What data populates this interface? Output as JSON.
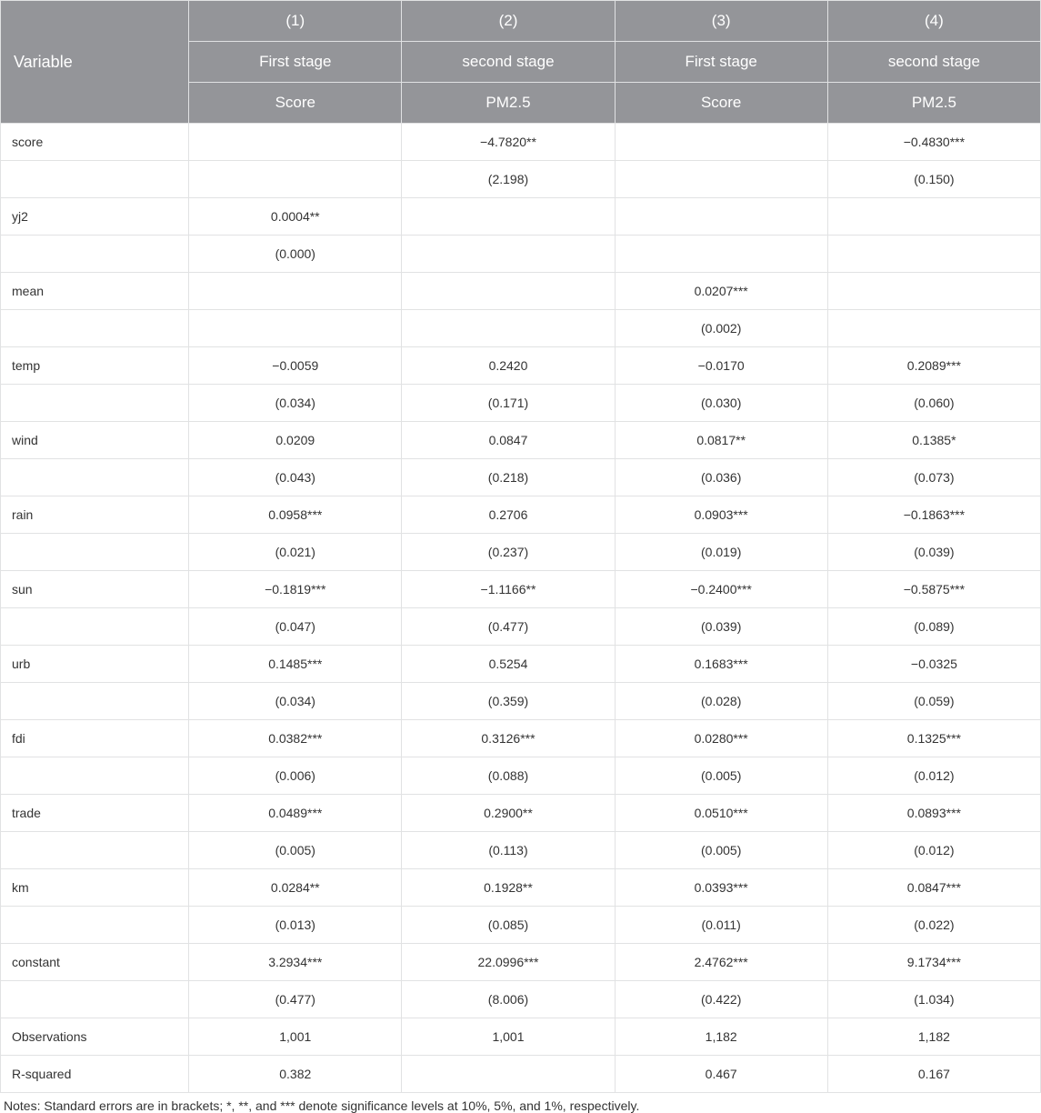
{
  "header": {
    "variable_label": "Variable",
    "col_numbers": [
      "(1)",
      "(2)",
      "(3)",
      "(4)"
    ],
    "stage_labels": [
      "First stage",
      "second stage",
      "First stage",
      "second stage"
    ],
    "dep_vars": [
      "Score",
      "PM2.5",
      "Score",
      "PM2.5"
    ]
  },
  "rows": [
    {
      "label": "score",
      "cells": [
        "",
        "−4.7820**",
        "",
        "−0.4830***"
      ]
    },
    {
      "label": "",
      "cells": [
        "",
        "(2.198)",
        "",
        "(0.150)"
      ]
    },
    {
      "label": "yj2",
      "cells": [
        "0.0004**",
        "",
        "",
        ""
      ]
    },
    {
      "label": "",
      "cells": [
        "(0.000)",
        "",
        "",
        ""
      ]
    },
    {
      "label": "mean",
      "cells": [
        "",
        "",
        "0.0207***",
        ""
      ]
    },
    {
      "label": "",
      "cells": [
        "",
        "",
        "(0.002)",
        ""
      ]
    },
    {
      "label": "temp",
      "cells": [
        "−0.0059",
        "0.2420",
        "−0.0170",
        "0.2089***"
      ]
    },
    {
      "label": "",
      "cells": [
        "(0.034)",
        "(0.171)",
        "(0.030)",
        "(0.060)"
      ]
    },
    {
      "label": "wind",
      "cells": [
        "0.0209",
        "0.0847",
        "0.0817**",
        "0.1385*"
      ]
    },
    {
      "label": "",
      "cells": [
        "(0.043)",
        "(0.218)",
        "(0.036)",
        "(0.073)"
      ]
    },
    {
      "label": "rain",
      "cells": [
        "0.0958***",
        "0.2706",
        "0.0903***",
        "−0.1863***"
      ]
    },
    {
      "label": "",
      "cells": [
        "(0.021)",
        "(0.237)",
        "(0.019)",
        "(0.039)"
      ]
    },
    {
      "label": "sun",
      "cells": [
        "−0.1819***",
        "−1.1166**",
        "−0.2400***",
        "−0.5875***"
      ]
    },
    {
      "label": "",
      "cells": [
        "(0.047)",
        "(0.477)",
        "(0.039)",
        "(0.089)"
      ]
    },
    {
      "label": "urb",
      "cells": [
        "0.1485***",
        "0.5254",
        "0.1683***",
        "−0.0325"
      ]
    },
    {
      "label": "",
      "cells": [
        "(0.034)",
        "(0.359)",
        "(0.028)",
        "(0.059)"
      ]
    },
    {
      "label": "fdi",
      "cells": [
        "0.0382***",
        "0.3126***",
        "0.0280***",
        "0.1325***"
      ]
    },
    {
      "label": "",
      "cells": [
        "(0.006)",
        "(0.088)",
        "(0.005)",
        "(0.012)"
      ]
    },
    {
      "label": "trade",
      "cells": [
        "0.0489***",
        "0.2900**",
        "0.0510***",
        "0.0893***"
      ]
    },
    {
      "label": "",
      "cells": [
        "(0.005)",
        "(0.113)",
        "(0.005)",
        "(0.012)"
      ]
    },
    {
      "label": "km",
      "cells": [
        "0.0284**",
        "0.1928**",
        "0.0393***",
        "0.0847***"
      ]
    },
    {
      "label": "",
      "cells": [
        "(0.013)",
        "(0.085)",
        "(0.011)",
        "(0.022)"
      ]
    },
    {
      "label": "constant",
      "cells": [
        "3.2934***",
        "22.0996***",
        "2.4762***",
        "9.1734***"
      ]
    },
    {
      "label": "",
      "cells": [
        "(0.477)",
        "(8.006)",
        "(0.422)",
        "(1.034)"
      ]
    },
    {
      "label": "Observations",
      "cells": [
        "1,001",
        "1,001",
        "1,182",
        "1,182"
      ]
    },
    {
      "label": "R-squared",
      "cells": [
        "0.382",
        "",
        "0.467",
        "0.167"
      ]
    }
  ],
  "footnote": "Notes: Standard errors are in brackets; *, **, and *** denote significance levels at 10%, 5%, and 1%, respectively.",
  "style": {
    "header_bg": "#949599",
    "header_fg": "#ffffff",
    "border_color": "#e1e2e3",
    "body_font_size": 14,
    "header_font_size": 17
  }
}
